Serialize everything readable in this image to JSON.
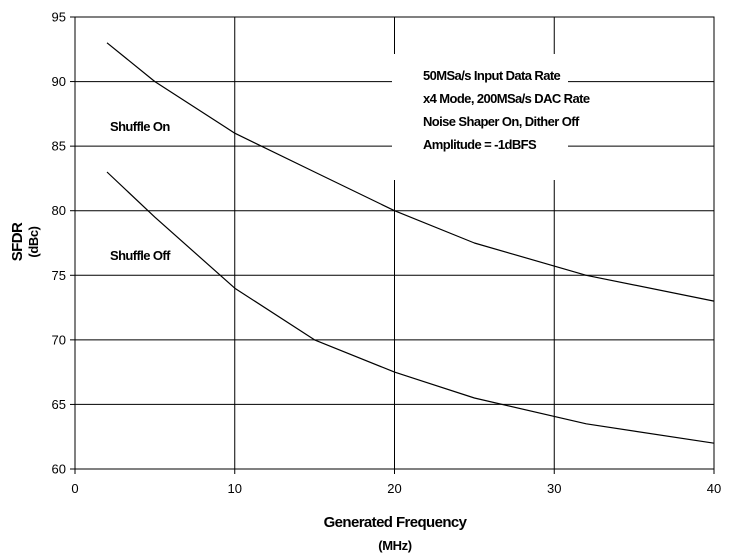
{
  "chart_data": {
    "type": "line",
    "title": "",
    "xlabel": "Generated Frequency",
    "xlabel_unit": "(MHz)",
    "ylabel": "SFDR",
    "ylabel_unit": "(dBc)",
    "xlim": [
      0,
      40
    ],
    "ylim": [
      60,
      95
    ],
    "xticks": [
      0,
      10,
      20,
      30,
      40
    ],
    "yticks": [
      60,
      65,
      70,
      75,
      80,
      85,
      90,
      95
    ],
    "grid": true,
    "line_color": "#000000",
    "series": [
      {
        "name": "Shuffle On",
        "x": [
          2,
          5,
          10,
          15,
          20,
          25,
          32,
          40
        ],
        "y": [
          93,
          90,
          86,
          83,
          80,
          77.5,
          75,
          73
        ]
      },
      {
        "name": "Shuffle Off",
        "x": [
          2,
          5,
          10,
          15,
          20,
          25,
          32,
          40
        ],
        "y": [
          83,
          79.5,
          74,
          70,
          67.5,
          65.5,
          63.5,
          62
        ]
      }
    ],
    "annotation": [
      "50MSa/s Input Data Rate",
      "x4 Mode, 200MSa/s DAC Rate",
      "Noise Shaper On, Dither Off",
      "Amplitude = -1dBFS"
    ]
  }
}
